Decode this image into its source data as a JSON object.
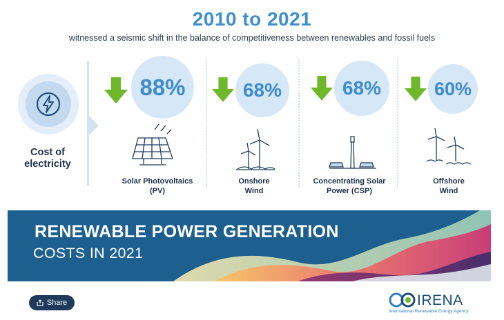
{
  "header": {
    "title": "2010 to 2021",
    "subtitle": "witnessed a seismic shift in the balance of competitiveness between renewables and fossil fuels"
  },
  "cost": {
    "label_line1": "Cost of",
    "label_line2": "electricity",
    "icon": "lightning-bolt-icon"
  },
  "technologies": [
    {
      "percent": "88%",
      "label_line1": "Solar Photovoltaics",
      "label_line2": "(PV)",
      "icon": "solar-panel-icon"
    },
    {
      "percent": "68%",
      "label_line1": "Onshore",
      "label_line2": "Wind",
      "icon": "onshore-wind-icon"
    },
    {
      "percent": "68%",
      "label_line1": "Concentrating Solar",
      "label_line2": "Power (CSP)",
      "icon": "csp-tower-icon"
    },
    {
      "percent": "60%",
      "label_line1": "Offshore",
      "label_line2": "Wind",
      "icon": "offshore-wind-icon"
    }
  ],
  "banner": {
    "title_line1": "RENEWABLE POWER GENERATION",
    "title_line2": "COSTS IN 2021"
  },
  "share": {
    "label": "Share"
  },
  "logo": {
    "wordmark": "IRENA",
    "tagline": "International Renewable Energy Agency"
  },
  "colors": {
    "accent_blue": "#3f8fcf",
    "arrow_green": "#6fb82a",
    "banner_blue": "#1d5f8f"
  }
}
